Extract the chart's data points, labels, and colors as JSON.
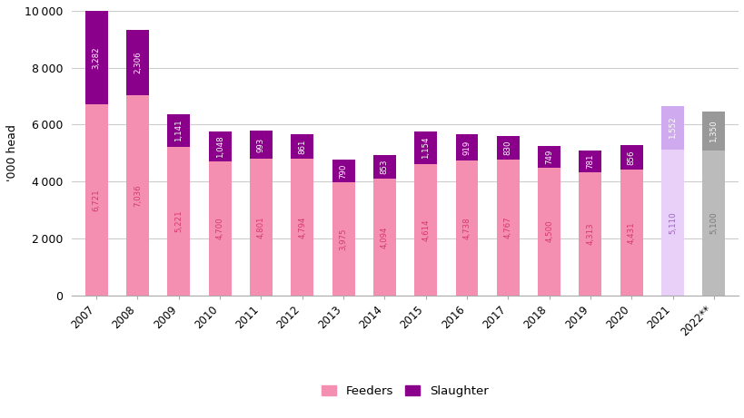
{
  "years": [
    "2007",
    "2008",
    "2009",
    "2010",
    "2011",
    "2012",
    "2013",
    "2014",
    "2015",
    "2016",
    "2017",
    "2018",
    "2019",
    "2020",
    "2021",
    "2022**"
  ],
  "feeders": [
    6721,
    7036,
    5221,
    4700,
    4801,
    4794,
    3975,
    4094,
    4614,
    4738,
    4767,
    4500,
    4313,
    4431,
    5110,
    5100
  ],
  "slaughter": [
    3282,
    2306,
    1141,
    1048,
    993,
    861,
    790,
    853,
    1154,
    919,
    830,
    749,
    781,
    856,
    1552,
    1350
  ],
  "feeders_colors": [
    "#f48fb1",
    "#f48fb1",
    "#f48fb1",
    "#f48fb1",
    "#f48fb1",
    "#f48fb1",
    "#f48fb1",
    "#f48fb1",
    "#f48fb1",
    "#f48fb1",
    "#f48fb1",
    "#f48fb1",
    "#f48fb1",
    "#f48fb1",
    "#e8d0f8",
    "#bbbbbb"
  ],
  "slaughter_colors": [
    "#8b008b",
    "#8b008b",
    "#8b008b",
    "#8b008b",
    "#8b008b",
    "#8b008b",
    "#8b008b",
    "#8b008b",
    "#8b008b",
    "#8b008b",
    "#8b008b",
    "#8b008b",
    "#8b008b",
    "#8b008b",
    "#d0aaee",
    "#999999"
  ],
  "feeders_label_colors": [
    "#d63870",
    "#d63870",
    "#d63870",
    "#d63870",
    "#d63870",
    "#d63870",
    "#d63870",
    "#d63870",
    "#d63870",
    "#d63870",
    "#d63870",
    "#d63870",
    "#d63870",
    "#d63870",
    "#9966bb",
    "#777777"
  ],
  "slaughter_label_colors": [
    "white",
    "white",
    "white",
    "white",
    "white",
    "white",
    "white",
    "white",
    "white",
    "white",
    "white",
    "white",
    "white",
    "white",
    "white",
    "white"
  ],
  "ylabel": "'000 head",
  "ylim": [
    0,
    10000
  ],
  "yticks": [
    0,
    2000,
    4000,
    6000,
    8000,
    10000
  ],
  "legend_feeders_label": "Feeders",
  "legend_slaughter_label": "Slaughter",
  "legend_feeders_color": "#f48fb1",
  "legend_slaughter_color": "#8b008b",
  "background_color": "#ffffff",
  "grid_color": "#cccccc"
}
